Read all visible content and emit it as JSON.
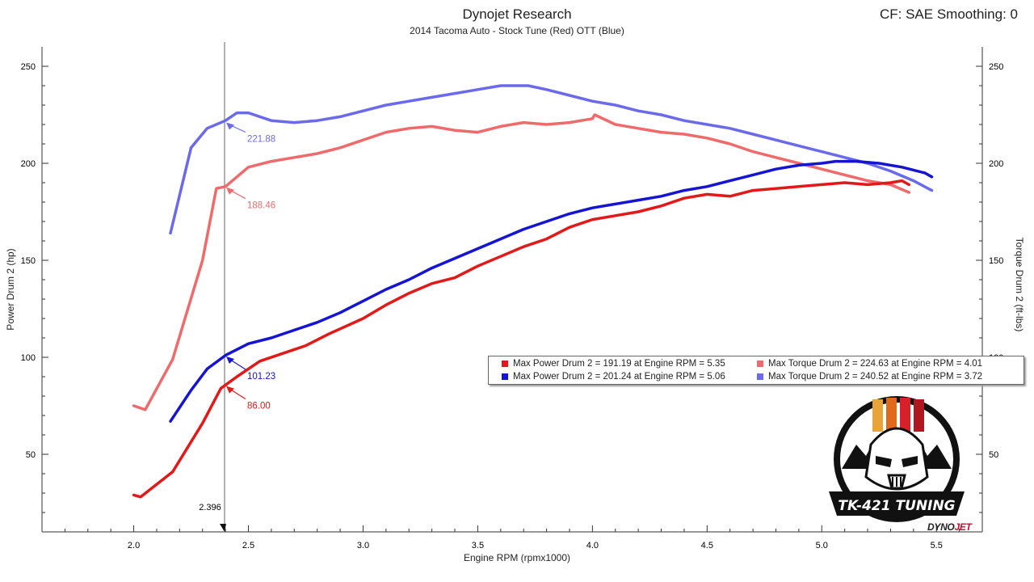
{
  "header": {
    "title": "Dynojet Research",
    "subtitle": "2014 Tacoma Auto - Stock Tune (Red) OTT (Blue)",
    "cf_smoothing": "CF: SAE Smoothing: 0"
  },
  "chart_data": {
    "type": "line",
    "xlabel": "Engine RPM (rpmx1000)",
    "ylabel_left": "Power Drum 2 (hp)",
    "ylabel_right": "Torque Drum 2 (ft-lbs)",
    "xlim": [
      1.6,
      5.7
    ],
    "ylim": [
      10,
      260
    ],
    "x_ticks": [
      "2.0",
      "2.5",
      "3.0",
      "3.5",
      "4.0",
      "4.5",
      "5.0",
      "5.5"
    ],
    "y_ticks_left": [
      "50",
      "100",
      "150",
      "200",
      "250"
    ],
    "y_ticks_right": [
      "50",
      "100",
      "150",
      "200",
      "250"
    ],
    "grid": false,
    "cursor": {
      "x": 2.396,
      "label": "2.396"
    },
    "colors": {
      "power_red": "#e11919",
      "power_blue": "#1414d2",
      "torque_red": "#ef6b6b",
      "torque_blue": "#6a6aea"
    },
    "series": [
      {
        "name": "Max Power Drum 2 = 191.19 at Engine RPM = 5.35",
        "color_key": "power_red",
        "x": [
          2.0,
          2.03,
          2.17,
          2.3,
          2.38,
          2.45,
          2.55,
          2.65,
          2.75,
          2.85,
          3.0,
          3.1,
          3.2,
          3.3,
          3.4,
          3.5,
          3.6,
          3.7,
          3.8,
          3.9,
          4.0,
          4.1,
          4.2,
          4.3,
          4.4,
          4.5,
          4.6,
          4.7,
          4.8,
          4.9,
          5.0,
          5.1,
          5.2,
          5.3,
          5.35,
          5.38
        ],
        "y": [
          29,
          28,
          41,
          66,
          84,
          90,
          98,
          102,
          106,
          112,
          120,
          127,
          133,
          138,
          141,
          147,
          152,
          157,
          161,
          167,
          171,
          173,
          175,
          178,
          182,
          184,
          183,
          186,
          187,
          188,
          189,
          190,
          189,
          190,
          191,
          189
        ]
      },
      {
        "name": "Max Power Drum 2 = 201.24 at Engine RPM = 5.06",
        "color_key": "power_blue",
        "x": [
          2.16,
          2.25,
          2.32,
          2.4,
          2.5,
          2.6,
          2.7,
          2.8,
          2.9,
          3.0,
          3.1,
          3.2,
          3.3,
          3.4,
          3.5,
          3.6,
          3.7,
          3.8,
          3.9,
          4.0,
          4.1,
          4.2,
          4.3,
          4.4,
          4.5,
          4.6,
          4.7,
          4.8,
          4.9,
          5.0,
          5.06,
          5.15,
          5.25,
          5.35,
          5.45,
          5.48
        ],
        "y": [
          67,
          83,
          94,
          101,
          107,
          110,
          114,
          118,
          123,
          129,
          135,
          140,
          146,
          151,
          156,
          161,
          166,
          170,
          174,
          177,
          179,
          181,
          183,
          186,
          188,
          191,
          194,
          197,
          199,
          200,
          201,
          201,
          200,
          198,
          195,
          193
        ]
      },
      {
        "name": "Max Torque Drum 2 = 224.63 at Engine RPM = 4.01",
        "color_key": "torque_red",
        "x": [
          2.0,
          2.05,
          2.17,
          2.3,
          2.36,
          2.4,
          2.5,
          2.6,
          2.7,
          2.8,
          2.9,
          3.0,
          3.1,
          3.2,
          3.3,
          3.4,
          3.5,
          3.6,
          3.7,
          3.8,
          3.9,
          4.0,
          4.01,
          4.1,
          4.2,
          4.3,
          4.4,
          4.5,
          4.6,
          4.7,
          4.8,
          4.9,
          5.0,
          5.1,
          5.2,
          5.3,
          5.38
        ],
        "y": [
          75,
          73,
          99,
          150,
          187,
          188,
          198,
          201,
          203,
          205,
          208,
          212,
          216,
          218,
          219,
          217,
          216,
          219,
          221,
          220,
          221,
          223,
          225,
          220,
          218,
          216,
          215,
          213,
          210,
          206,
          203,
          200,
          197,
          194,
          191,
          189,
          185
        ]
      },
      {
        "name": "Max Torque Drum 2 = 240.52 at Engine RPM = 3.72",
        "color_key": "torque_blue",
        "x": [
          2.16,
          2.25,
          2.32,
          2.4,
          2.45,
          2.5,
          2.6,
          2.7,
          2.8,
          2.9,
          3.0,
          3.1,
          3.2,
          3.3,
          3.4,
          3.5,
          3.6,
          3.72,
          3.8,
          3.9,
          4.0,
          4.1,
          4.2,
          4.3,
          4.4,
          4.5,
          4.6,
          4.7,
          4.8,
          4.9,
          5.0,
          5.1,
          5.2,
          5.3,
          5.4,
          5.48
        ],
        "y": [
          164,
          208,
          218,
          222,
          226,
          226,
          222,
          221,
          222,
          224,
          227,
          230,
          232,
          234,
          236,
          238,
          240,
          240,
          238,
          235,
          232,
          230,
          227,
          225,
          222,
          220,
          218,
          215,
          212,
          209,
          206,
          203,
          200,
          196,
          191,
          186
        ]
      }
    ],
    "annotations": [
      {
        "x": 2.396,
        "y": 221.88,
        "text": "221.88",
        "color_key": "torque_blue"
      },
      {
        "x": 2.396,
        "y": 188.46,
        "text": "188.46",
        "color_key": "torque_red"
      },
      {
        "x": 2.396,
        "y": 101.23,
        "text": "101.23",
        "color_key": "power_blue"
      },
      {
        "x": 2.396,
        "y": 86.0,
        "text": "86.00",
        "color_key": "power_red"
      }
    ]
  },
  "legend": {
    "items": [
      {
        "label": "Max Power Drum 2 = 191.19 at Engine RPM = 5.35",
        "color": "#e11919"
      },
      {
        "label": "Max Torque Drum 2 = 224.63 at Engine RPM = 4.01",
        "color": "#ef6b6b"
      },
      {
        "label": "Max Power Drum 2 = 201.24 at Engine RPM = 5.06",
        "color": "#1414d2"
      },
      {
        "label": "Max Torque Drum 2 = 240.52 at Engine RPM = 3.72",
        "color": "#6a6aea"
      }
    ]
  },
  "logo": {
    "text": "TK-421 TUNING",
    "icon": "stormtrooper-helmet-icon"
  },
  "watermark": {
    "brand_a": "DYNO",
    "brand_b": "JET"
  }
}
